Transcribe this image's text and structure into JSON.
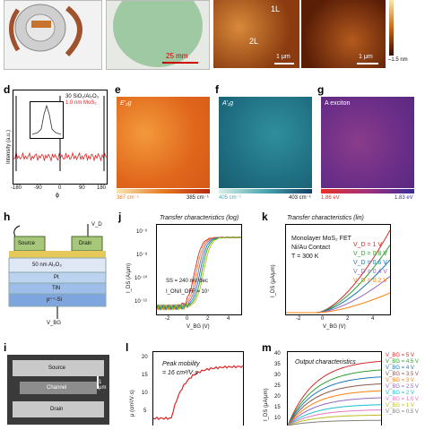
{
  "panels": {
    "a_label": "",
    "b": {
      "scale": "25 mm"
    },
    "c": {
      "label_1L": "1L",
      "label_2L": "2L",
      "scale_left": "1 μm",
      "scale_right": "1 μm",
      "cbar_min": "–1.5 nm"
    },
    "d": {
      "label": "d",
      "legend1": "30 SiO₂/Al₂O₃",
      "legend2": "1.0 nm MoS₂",
      "ylabel": "Intensity (a.u.)",
      "xlabel": "ϕ",
      "x_ticks": [
        "-180",
        "-90",
        "0",
        "90",
        "180"
      ]
    },
    "e": {
      "label": "e",
      "title": "E′₂g",
      "cmin": "387 cm⁻¹",
      "cmax": "385 cm⁻¹"
    },
    "f": {
      "label": "f",
      "title": "A′₁g",
      "cmin": "405 cm⁻¹",
      "cmax": "403 cm⁻¹"
    },
    "g": {
      "label": "g",
      "title": "A exciton",
      "cmin": "1.86 eV",
      "cmax": "1.83 eV"
    },
    "h": {
      "label": "h",
      "vd": "V_D",
      "source": "Source",
      "drain": "Drain",
      "al2o3": "50 nm Al₂O₃",
      "pt": "Pt",
      "tin": "TiN",
      "psi": "p⁺⁺-Si",
      "vbg": "V_BG"
    },
    "j": {
      "label": "j",
      "title": "Transfer characteristics (log)",
      "ylabel": "I_DS (A/μm)",
      "xlabel": "V_BG (V)",
      "y_ticks": [
        "10⁻⁶",
        "10⁻⁸",
        "10⁻¹⁰",
        "10⁻¹²"
      ],
      "x_ticks": [
        "-2",
        "0",
        "2",
        "4"
      ],
      "ss": "SS = 240 mV/dec",
      "onoff": "I_ON/I_OFF = 10⁷"
    },
    "k": {
      "label": "k",
      "title": "Transfer characteristics (lin)",
      "ylabel": "I_DS (μA/μm)",
      "xlabel": "V_BG (V)",
      "info1": "Monolayer MoS₂ FET",
      "info2": "Ni/Au Contact",
      "info3": "T = 300 K",
      "x_ticks": [
        "-2",
        "0",
        "2",
        "4"
      ],
      "legend": [
        "V_D = 1 V",
        "V_D = 0.8 V",
        "V_D = 0.6 V",
        "V_D = 0.4 V",
        "V_D = 0.2 V"
      ]
    },
    "i": {
      "label": "i",
      "source": "Source",
      "channel": "Channel",
      "drain": "Drain",
      "scale": "1 μm"
    },
    "l": {
      "label": "l",
      "line1": "Peak mobility",
      "line2": "= 16 cm²/V·s",
      "ylabel": "μ (cm²/V·s)",
      "y_ticks": [
        "20",
        "15",
        "10",
        "5"
      ]
    },
    "m": {
      "label": "m",
      "title": "Output characteristics",
      "ylabel": "I_DS (μA/μm)",
      "y_ticks": [
        "40",
        "35",
        "30",
        "25",
        "20",
        "15",
        "10"
      ],
      "legend": [
        "V_BG = 5 V",
        "V_BG = 4.5 V",
        "V_BG = 4 V",
        "V_BG = 3.5 V",
        "V_BG = 3 V",
        "V_BG = 2.5 V",
        "V_BG = 2 V",
        "V_BG = 1.5 V",
        "V_BG = 1 V",
        "V_BG = 0.5 V"
      ]
    }
  },
  "colors": {
    "k_series": [
      "#d62728",
      "#2ca02c",
      "#1f77b4",
      "#9467bd",
      "#ff7f0e"
    ],
    "m_series": [
      "#d62728",
      "#2ca02c",
      "#1f77b4",
      "#8c564b",
      "#ff7f0e",
      "#9467bd",
      "#17becf",
      "#e377c2",
      "#bcbd22",
      "#7f7f7f"
    ]
  }
}
